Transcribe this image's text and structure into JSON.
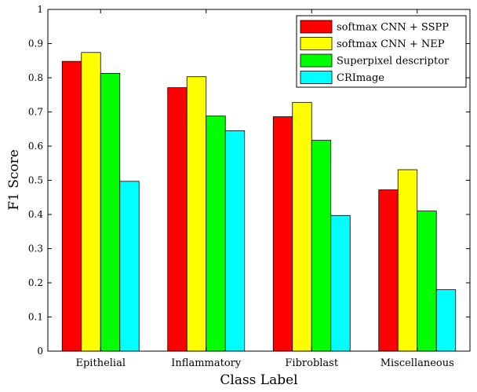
{
  "chart_data": {
    "type": "bar",
    "title": "",
    "xlabel": "Class Label",
    "ylabel": "F1 Score",
    "ylim": [
      0,
      1
    ],
    "yticks": [
      0,
      0.1,
      0.2,
      0.3,
      0.4,
      0.5,
      0.6,
      0.7,
      0.8,
      0.9,
      1
    ],
    "ytick_labels": [
      "0",
      "0.1",
      "0.2",
      "0.3",
      "0.4",
      "0.5",
      "0.6",
      "0.7",
      "0.8",
      "0.9",
      "1"
    ],
    "categories": [
      "Epithelial",
      "Inflammatory",
      "Fibroblast",
      "Miscellaneous"
    ],
    "grid": false,
    "legend_position": "top-right",
    "series": [
      {
        "name": "softmax CNN + SSPP",
        "color": "#ff0000",
        "values": [
          0.848,
          0.771,
          0.686,
          0.472
        ]
      },
      {
        "name": "softmax CNN + NEP",
        "color": "#ffff00",
        "values": [
          0.874,
          0.803,
          0.728,
          0.531
        ]
      },
      {
        "name": "Superpixel descriptor",
        "color": "#00ff00",
        "values": [
          0.813,
          0.688,
          0.617,
          0.41
        ]
      },
      {
        "name": "CRImage",
        "color": "#00ffff",
        "values": [
          0.497,
          0.645,
          0.397,
          0.18
        ]
      }
    ]
  }
}
